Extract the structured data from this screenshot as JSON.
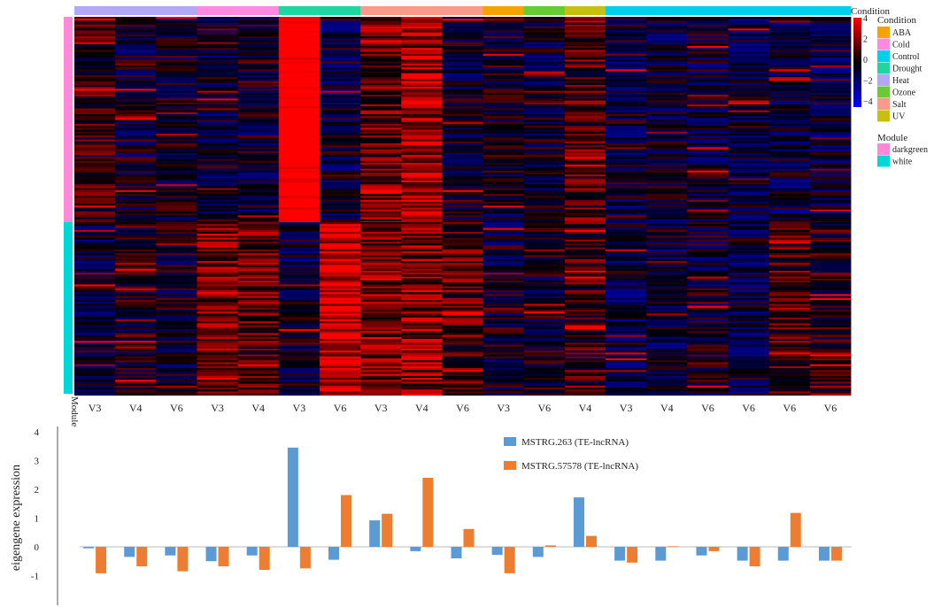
{
  "heatmap": {
    "condition_title": "Condition",
    "module_title": "Module",
    "module_axis_label": "Module",
    "color_scale": {
      "low": "#0000ff",
      "mid": "#000000",
      "high": "#ff0000",
      "ticks": [
        "4",
        "2",
        "0",
        "−2",
        "−4"
      ],
      "max": 4,
      "min": -4
    },
    "conditions": [
      {
        "name": "ABA",
        "color": "#f5a300"
      },
      {
        "name": "Cold",
        "color": "#ff88e0"
      },
      {
        "name": "Control",
        "color": "#00cfee"
      },
      {
        "name": "Drought",
        "color": "#1ed6a0"
      },
      {
        "name": "Heat",
        "color": "#b3a8f5"
      },
      {
        "name": "Ozone",
        "color": "#66cc33"
      },
      {
        "name": "Salt",
        "color": "#f99a8a"
      },
      {
        "name": "UV",
        "color": "#c8c010"
      }
    ],
    "modules": [
      {
        "name": "darkgreen",
        "color": "#ff88d8"
      },
      {
        "name": "white",
        "color": "#00d8d8"
      }
    ],
    "columns": [
      {
        "label": "V3",
        "condition": "Heat",
        "dg": 0.3,
        "wh": -0.35
      },
      {
        "label": "V4",
        "condition": "Heat",
        "dg": -0.3,
        "wh": -0.1
      },
      {
        "label": "V6",
        "condition": "Heat",
        "dg": -0.25,
        "wh": -0.25
      },
      {
        "label": "V3",
        "condition": "Cold",
        "dg": -0.4,
        "wh": 0.9
      },
      {
        "label": "V4",
        "condition": "Cold",
        "dg": -0.3,
        "wh": 0.7
      },
      {
        "label": "V3",
        "condition": "Drought",
        "dg": 3.0,
        "wh": -0.5
      },
      {
        "label": "V6",
        "condition": "Drought",
        "dg": -0.4,
        "wh": 1.8
      },
      {
        "label": "V3",
        "condition": "Salt",
        "dg": 0.8,
        "wh": 1.0
      },
      {
        "label": "V4",
        "condition": "Salt",
        "dg": 1.4,
        "wh": 1.0
      },
      {
        "label": "V6",
        "condition": "Salt",
        "dg": -0.35,
        "wh": 0.6
      },
      {
        "label": "V3",
        "condition": "ABA",
        "dg": -0.2,
        "wh": -0.3
      },
      {
        "label": "V6",
        "condition": "Ozone",
        "dg": -0.3,
        "wh": -0.15
      },
      {
        "label": "V4",
        "condition": "UV",
        "dg": 0.5,
        "wh": 0.3
      },
      {
        "label": "V3",
        "condition": "Control",
        "dg": -0.4,
        "wh": -0.5
      },
      {
        "label": "V4",
        "condition": "Control",
        "dg": -0.45,
        "wh": -0.5
      },
      {
        "label": "V6",
        "condition": "Control",
        "dg": -0.35,
        "wh": -0.3
      },
      {
        "label": "V6",
        "condition": "Control",
        "dg": -0.5,
        "wh": -0.5
      },
      {
        "label": "V6",
        "condition": "Control",
        "dg": -0.5,
        "wh": 0.5
      },
      {
        "label": "V6",
        "condition": "Control",
        "dg": -0.5,
        "wh": 0.1
      }
    ]
  },
  "chart_data": {
    "type": "bar",
    "ylabel": "eigengene expression",
    "ylim": [
      -2,
      4
    ],
    "yticks": [
      4,
      3,
      2,
      1,
      0,
      -1
    ],
    "categories": [
      "V3",
      "V4",
      "V6",
      "V3",
      "V4",
      "V3",
      "V6",
      "V3",
      "V4",
      "V6",
      "V3",
      "V6",
      "V4",
      "V3",
      "V4",
      "V6",
      "V6",
      "V6",
      "V6"
    ],
    "legend_position": "top-right",
    "series": [
      {
        "name": "MSTRG.263  (TE-lncRNA)",
        "color": "#5b9bd5",
        "values": [
          -0.05,
          -0.35,
          -0.3,
          -0.5,
          -0.3,
          3.45,
          -0.45,
          0.92,
          -0.15,
          -0.4,
          -0.28,
          -0.35,
          1.72,
          -0.48,
          -0.48,
          -0.3,
          -0.48,
          -0.48,
          -0.48
        ]
      },
      {
        "name": "MSTRG.57578  (TE-lncRNA)",
        "color": "#ed7d31",
        "values": [
          -0.92,
          -0.68,
          -0.85,
          -0.68,
          -0.8,
          -0.75,
          1.8,
          1.15,
          2.4,
          0.62,
          -0.92,
          0.05,
          0.38,
          -0.55,
          0.02,
          -0.15,
          -0.68,
          1.18,
          -0.48
        ]
      }
    ]
  }
}
